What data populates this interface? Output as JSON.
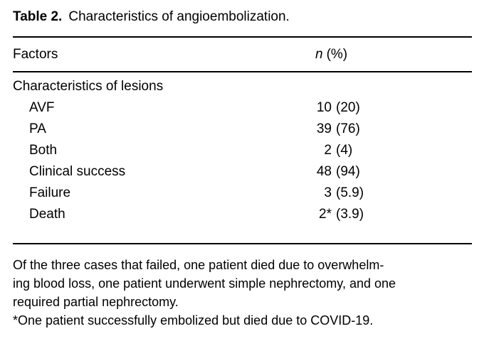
{
  "title": {
    "label": "Table 2.",
    "caption": "Characteristics of angioembolization."
  },
  "table": {
    "columns": {
      "factor": "Factors",
      "value_n": "n",
      "value_rest": "(%)"
    },
    "rows": [
      {
        "factor": "Characteristics of lesions",
        "n": "",
        "pct": "",
        "indent": false
      },
      {
        "factor": "AVF",
        "n": "10",
        "pct": "(20)",
        "indent": true
      },
      {
        "factor": "PA",
        "n": "39",
        "pct": "(76)",
        "indent": true
      },
      {
        "factor": "Both",
        "n": "2",
        "pct": "(4)",
        "indent": true
      },
      {
        "factor": "Clinical success",
        "n": "48",
        "pct": "(94)",
        "indent": true
      },
      {
        "factor": "Failure",
        "n": "3",
        "pct": "(5.9)",
        "indent": true
      },
      {
        "factor": "Death",
        "n": "2*",
        "pct": "(3.9)",
        "indent": true
      }
    ]
  },
  "footnotes": {
    "lines": [
      "Of the three cases that failed, one patient died due to overwhelm-",
      "ing blood loss, one patient underwent simple nephrectomy, and one",
      "required partial nephrectomy.",
      "*One patient successfully embolized but died due to COVID-19."
    ]
  },
  "colors": {
    "text": "#000000",
    "background": "#ffffff",
    "rule": "#000000"
  }
}
